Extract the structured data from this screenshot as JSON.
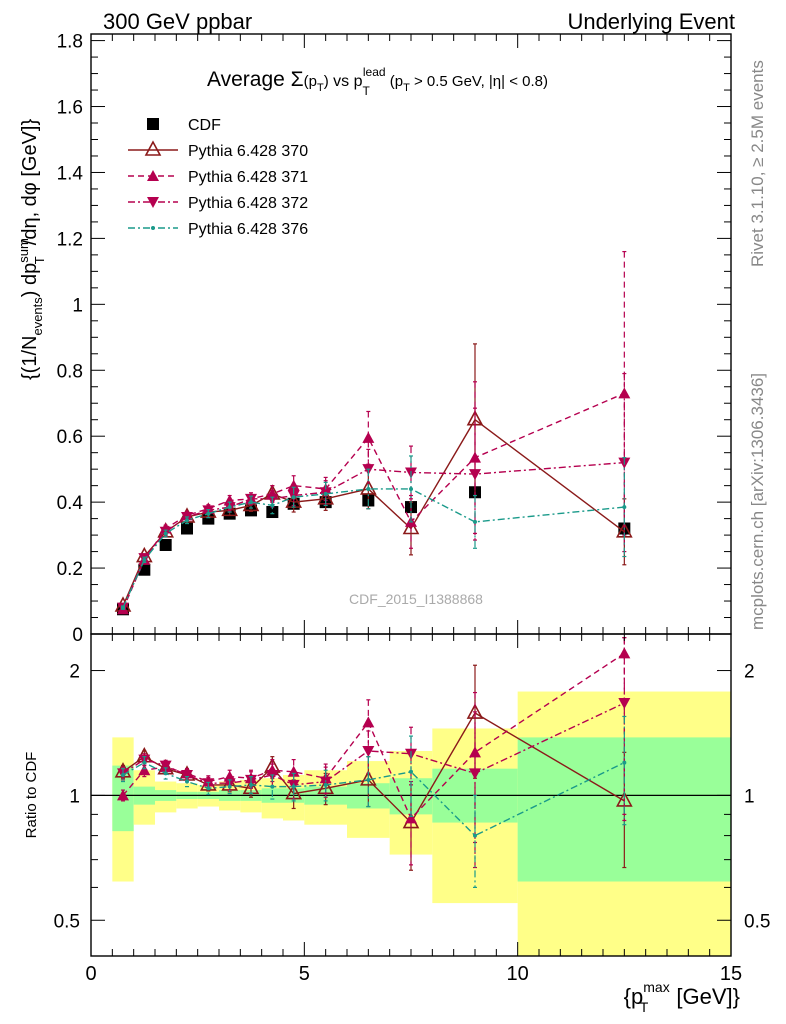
{
  "header": {
    "left": "300 GeV ppbar",
    "right": "Underlying Event"
  },
  "side_labels": {
    "rivet": "Rivet 3.1.10, ≥ 2.5M events",
    "mcplots": "mcplots.cern.ch [arXiv:1306.3436]"
  },
  "watermark": "CDF_2015_I1388868",
  "chart_data": {
    "type": "scatter",
    "title": "Average Σ(p_T) vs p_T^lead (p_T > 0.5 GeV, |η| < 0.8)",
    "title_parts": {
      "avg": "Average ",
      "sigma": "Σ",
      "open": "(p",
      "t": "T",
      "close": ")",
      "vs": " vs p",
      "lead": "lead",
      "cuts_a": " (p",
      "cuts_b": " > 0.5 GeV, |η| < 0.8)"
    },
    "xlabel": "{p_T^max [GeV]}",
    "xlabel_parts": {
      "open": "{p",
      "sup": "max",
      "sub": "T",
      "close": " [GeV]}"
    },
    "ylabel": "{(1/N_events) dp_T^sum/dη, dφ [GeV]}",
    "ylabel_parts": {
      "a": "{(1/N",
      "events": "events",
      "b": ") dp",
      "sum": "sum",
      "T": "T",
      "c": "/dη, dφ [GeV]}"
    },
    "ratio_ylabel": "Ratio to CDF",
    "xlim": [
      0,
      15
    ],
    "ylim": [
      0,
      1.82
    ],
    "ratio_ylim": [
      0.41,
      2.45
    ],
    "ratio_log": true,
    "x_ticks": [
      "0",
      "5",
      "10",
      "15"
    ],
    "y_ticks": [
      "0",
      "0.2",
      "0.4",
      "0.6",
      "0.8",
      "1",
      "1.2",
      "1.4",
      "1.6",
      "1.8"
    ],
    "ratio_ticks": [
      "0.5",
      "1",
      "2"
    ],
    "legend_position": "top-left",
    "series": [
      {
        "name": "CDF",
        "color": "#000000",
        "marker": "square",
        "x": [
          0.75,
          1.25,
          1.75,
          2.25,
          2.75,
          3.25,
          3.75,
          4.25,
          4.75,
          5.5,
          6.5,
          7.5,
          9.0,
          12.5
        ],
        "y": [
          0.075,
          0.195,
          0.27,
          0.32,
          0.35,
          0.365,
          0.375,
          0.37,
          0.395,
          0.4,
          0.405,
          0.385,
          0.43,
          0.32
        ]
      },
      {
        "name": "Pythia 6.428 370",
        "color": "#8b1a1a",
        "marker": "triangle-open",
        "line": "solid",
        "x": [
          0.75,
          1.25,
          1.75,
          2.25,
          2.75,
          3.25,
          3.75,
          4.25,
          4.75,
          5.5,
          6.5,
          7.5,
          9.0,
          12.5
        ],
        "y": [
          0.085,
          0.235,
          0.31,
          0.355,
          0.37,
          0.375,
          0.39,
          0.425,
          0.4,
          0.41,
          0.44,
          0.32,
          0.65,
          0.31
        ],
        "err": [
          0.005,
          0.008,
          0.01,
          0.01,
          0.012,
          0.015,
          0.018,
          0.025,
          0.03,
          0.035,
          0.06,
          0.08,
          0.23,
          0.1
        ],
        "ratio": [
          1.14,
          1.24,
          1.16,
          1.12,
          1.06,
          1.06,
          1.04,
          1.17,
          1.01,
          1.04,
          1.09,
          0.86,
          1.58,
          0.97
        ],
        "ratio_err": [
          0.04,
          0.04,
          0.035,
          0.03,
          0.035,
          0.04,
          0.05,
          0.07,
          0.08,
          0.09,
          0.15,
          0.2,
          0.48,
          0.3
        ]
      },
      {
        "name": "Pythia 6.428 371",
        "color": "#b5004f",
        "marker": "triangle-up",
        "line": "dashed",
        "x": [
          0.75,
          1.25,
          1.75,
          2.25,
          2.75,
          3.25,
          3.75,
          4.25,
          4.75,
          5.5,
          6.5,
          7.5,
          9.0,
          12.5
        ],
        "y": [
          0.075,
          0.225,
          0.32,
          0.36,
          0.38,
          0.405,
          0.41,
          0.425,
          0.45,
          0.44,
          0.595,
          0.34,
          0.535,
          0.73
        ],
        "err": [
          0.005,
          0.008,
          0.01,
          0.01,
          0.012,
          0.015,
          0.018,
          0.025,
          0.03,
          0.035,
          0.08,
          0.08,
          0.23,
          0.43
        ],
        "ratio": [
          1.0,
          1.15,
          1.17,
          1.13,
          1.08,
          1.11,
          1.1,
          1.15,
          1.14,
          1.1,
          1.5,
          0.88,
          1.27,
          2.2
        ],
        "ratio_err": [
          0.03,
          0.04,
          0.035,
          0.03,
          0.035,
          0.04,
          0.05,
          0.07,
          0.08,
          0.09,
          0.2,
          0.2,
          0.5,
          1.3
        ]
      },
      {
        "name": "Pythia 6.428 372",
        "color": "#b5004f",
        "marker": "triangle-down",
        "line": "dash-dot",
        "x": [
          0.75,
          1.25,
          1.75,
          2.25,
          2.75,
          3.25,
          3.75,
          4.25,
          4.75,
          5.5,
          6.5,
          7.5,
          9.0,
          12.5
        ],
        "y": [
          0.08,
          0.23,
          0.31,
          0.355,
          0.375,
          0.385,
          0.41,
          0.41,
          0.42,
          0.43,
          0.5,
          0.49,
          0.485,
          0.52
        ],
        "err": [
          0.005,
          0.008,
          0.01,
          0.01,
          0.012,
          0.015,
          0.018,
          0.025,
          0.03,
          0.035,
          0.06,
          0.08,
          0.2,
          0.27
        ],
        "ratio": [
          1.13,
          1.22,
          1.18,
          1.12,
          1.07,
          1.07,
          1.09,
          1.12,
          1.06,
          1.08,
          1.28,
          1.26,
          1.13,
          1.67
        ],
        "ratio_err": [
          0.04,
          0.04,
          0.035,
          0.03,
          0.035,
          0.04,
          0.05,
          0.07,
          0.08,
          0.09,
          0.15,
          0.2,
          0.46,
          0.8
        ]
      },
      {
        "name": "Pythia 6.428 376",
        "color": "#1a9a8a",
        "marker": "dot",
        "line": "dash-dot",
        "x": [
          0.75,
          1.25,
          1.75,
          2.25,
          2.75,
          3.25,
          3.75,
          4.25,
          4.75,
          5.5,
          6.5,
          7.5,
          9.0,
          12.5
        ],
        "y": [
          0.08,
          0.225,
          0.305,
          0.345,
          0.365,
          0.385,
          0.4,
          0.39,
          0.415,
          0.425,
          0.44,
          0.44,
          0.34,
          0.385
        ],
        "err": [
          0.005,
          0.008,
          0.01,
          0.01,
          0.012,
          0.015,
          0.018,
          0.025,
          0.03,
          0.035,
          0.06,
          0.1,
          0.08,
          0.15
        ],
        "ratio": [
          1.12,
          1.2,
          1.13,
          1.08,
          1.04,
          1.05,
          1.06,
          1.05,
          1.05,
          1.06,
          1.09,
          1.14,
          0.8,
          1.2
        ],
        "ratio_err": [
          0.04,
          0.04,
          0.035,
          0.03,
          0.035,
          0.04,
          0.05,
          0.07,
          0.08,
          0.09,
          0.15,
          0.25,
          0.2,
          0.35
        ]
      }
    ],
    "data_uncertainty_bands": {
      "bins": [
        [
          0.5,
          1.0
        ],
        [
          1.0,
          1.5
        ],
        [
          1.5,
          2.0
        ],
        [
          2.0,
          2.5
        ],
        [
          2.5,
          3.0
        ],
        [
          3.0,
          3.5
        ],
        [
          3.5,
          4.0
        ],
        [
          4.0,
          4.5
        ],
        [
          4.5,
          5.0
        ],
        [
          5.0,
          6.0
        ],
        [
          6.0,
          7.0
        ],
        [
          7.0,
          8.0
        ],
        [
          8.0,
          10.0
        ],
        [
          10.0,
          15.0
        ]
      ],
      "stat_lo": [
        0.82,
        0.95,
        0.97,
        0.98,
        0.98,
        0.97,
        0.97,
        0.96,
        0.96,
        0.95,
        0.93,
        0.9,
        0.86,
        0.62
      ],
      "stat_hi": [
        1.18,
        1.05,
        1.03,
        1.02,
        1.02,
        1.03,
        1.03,
        1.04,
        1.04,
        1.05,
        1.07,
        1.1,
        1.16,
        1.38
      ],
      "total_lo": [
        0.62,
        0.85,
        0.91,
        0.93,
        0.94,
        0.92,
        0.91,
        0.88,
        0.87,
        0.85,
        0.79,
        0.72,
        0.55,
        0.38
      ],
      "total_hi": [
        1.38,
        1.15,
        1.08,
        1.07,
        1.06,
        1.08,
        1.09,
        1.1,
        1.12,
        1.15,
        1.21,
        1.28,
        1.45,
        1.78
      ],
      "stat_color": "#99ff99",
      "total_color": "#ffff88"
    }
  }
}
